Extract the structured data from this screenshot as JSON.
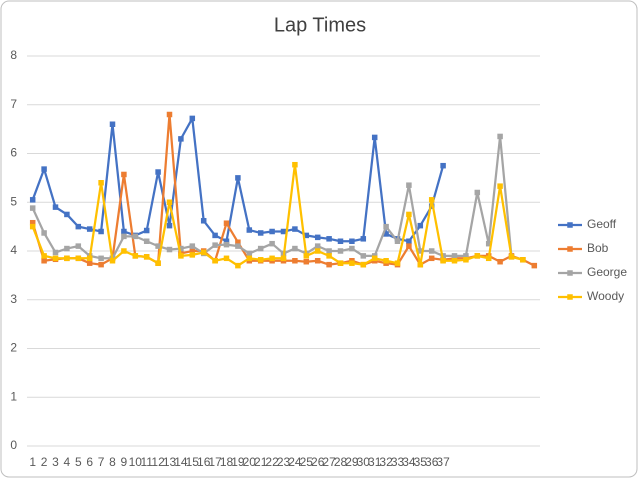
{
  "chart_data": {
    "type": "line",
    "title": "Lap Times",
    "categories": [
      1,
      2,
      3,
      4,
      5,
      6,
      7,
      8,
      9,
      10,
      11,
      12,
      13,
      14,
      15,
      16,
      17,
      18,
      19,
      20,
      21,
      22,
      23,
      24,
      25,
      26,
      27,
      28,
      29,
      30,
      31,
      32,
      33,
      34,
      35,
      36,
      37,
      null,
      null,
      null,
      null,
      null,
      null,
      null,
      null
    ],
    "series": [
      {
        "name": "Geoff",
        "color": "#4472c4",
        "values": [
          5.05,
          5.68,
          4.9,
          4.75,
          4.5,
          4.45,
          4.4,
          6.6,
          4.4,
          4.32,
          4.42,
          5.62,
          4.52,
          6.3,
          6.72,
          4.62,
          4.32,
          4.2,
          5.5,
          4.43,
          4.37,
          4.4,
          4.4,
          4.45,
          4.32,
          4.28,
          4.25,
          4.2,
          4.2,
          4.25,
          6.33,
          4.35,
          4.25,
          4.2,
          4.52,
          4.92,
          5.75,
          null,
          null,
          null,
          null,
          null,
          null,
          null,
          null
        ]
      },
      {
        "name": "Bob",
        "color": "#ed7d31",
        "values": [
          4.58,
          3.8,
          3.83,
          3.85,
          3.85,
          3.75,
          3.72,
          3.85,
          5.57,
          3.9,
          3.88,
          3.75,
          6.8,
          3.95,
          4.0,
          4.0,
          3.8,
          4.57,
          4.18,
          3.8,
          3.8,
          3.8,
          3.8,
          3.8,
          3.78,
          3.8,
          3.72,
          3.75,
          3.8,
          3.72,
          3.8,
          3.75,
          3.72,
          4.1,
          3.72,
          3.85,
          3.82,
          3.85,
          3.85,
          3.9,
          3.9,
          3.78,
          3.9,
          3.82,
          3.7
        ]
      },
      {
        "name": "George",
        "color": "#a5a5a5",
        "values": [
          4.88,
          4.37,
          3.97,
          4.05,
          4.1,
          3.9,
          3.85,
          3.85,
          4.3,
          4.3,
          4.2,
          4.1,
          4.03,
          4.05,
          4.1,
          3.95,
          4.12,
          4.13,
          4.1,
          3.95,
          4.05,
          4.15,
          3.95,
          4.05,
          3.95,
          4.1,
          4.0,
          4.0,
          4.05,
          3.9,
          3.9,
          4.5,
          4.2,
          5.35,
          4.0,
          4.0,
          3.9,
          3.9,
          3.9,
          5.2,
          4.15,
          6.35,
          3.88,
          null,
          null
        ]
      },
      {
        "name": "Woody",
        "color": "#ffc000",
        "values": [
          4.5,
          3.9,
          3.85,
          3.85,
          3.85,
          3.85,
          5.4,
          3.8,
          4.0,
          3.9,
          3.88,
          3.75,
          5.0,
          3.9,
          3.92,
          3.97,
          3.8,
          3.85,
          3.7,
          3.85,
          3.82,
          3.85,
          3.85,
          5.77,
          3.9,
          4.0,
          3.9,
          3.75,
          3.75,
          3.72,
          3.85,
          3.8,
          3.75,
          4.75,
          3.72,
          5.05,
          3.8,
          3.8,
          3.82,
          3.9,
          3.85,
          5.33,
          3.88,
          3.82,
          null
        ]
      }
    ],
    "ylim": [
      0,
      8
    ],
    "yticks": [
      0,
      1,
      2,
      3,
      4,
      5,
      6,
      7,
      8
    ],
    "grid": true,
    "legend": "right"
  }
}
